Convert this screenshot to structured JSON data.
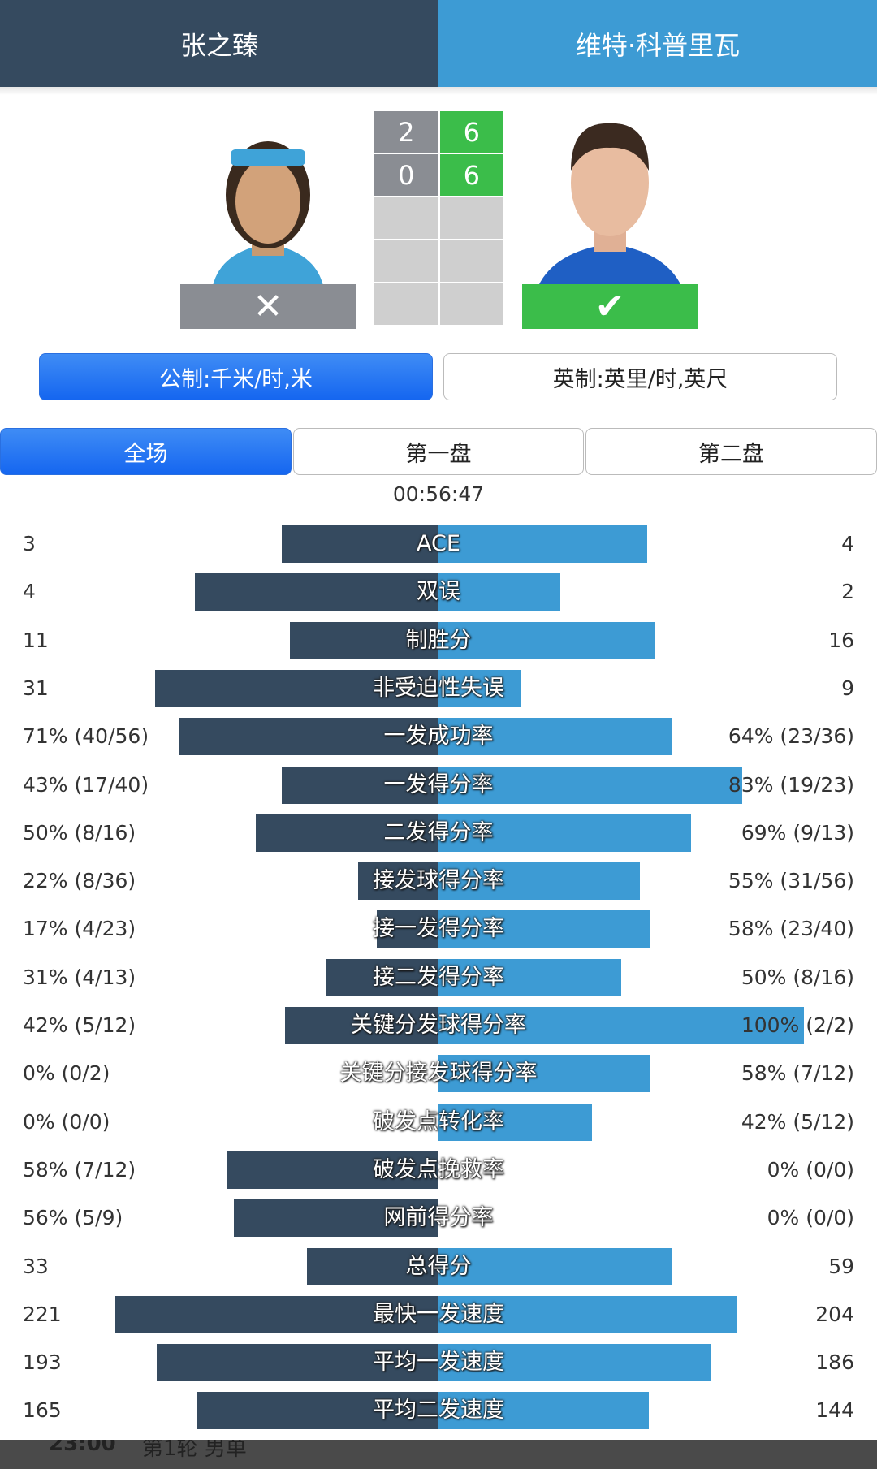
{
  "players": {
    "left": {
      "name": "张之臻",
      "result_icon": "x-icon"
    },
    "right": {
      "name": "维特·科普里瓦",
      "result_icon": "check-icon"
    }
  },
  "score": {
    "left": [
      "2",
      "0",
      "",
      "",
      ""
    ],
    "right": [
      "6",
      "6",
      "",
      "",
      ""
    ]
  },
  "units": {
    "metric": "公制:千米/时,米",
    "imperial": "英制:英里/时,英尺",
    "active": "metric"
  },
  "tabs": [
    {
      "label": "全场",
      "active": true
    },
    {
      "label": "第一盘",
      "active": false
    },
    {
      "label": "第二盘",
      "active": false
    }
  ],
  "duration": "00:56:47",
  "colors": {
    "left": "#354a5f",
    "right": "#3d9bd4",
    "win": "#3bbd4a",
    "lose": "#8a8d93"
  },
  "stats": [
    {
      "label": "ACE",
      "left": "3",
      "right": "4",
      "lf": 0.429,
      "rf": 0.571
    },
    {
      "label": "双误",
      "left": "4",
      "right": "2",
      "lf": 0.667,
      "rf": 0.333
    },
    {
      "label": "制胜分",
      "left": "11",
      "right": "16",
      "lf": 0.407,
      "rf": 0.593
    },
    {
      "label": "非受迫性失误",
      "left": "31",
      "right": "9",
      "lf": 0.775,
      "rf": 0.225
    },
    {
      "label": "一发成功率",
      "left": "71% (40/56)",
      "right": "64% (23/36)",
      "lf": 0.71,
      "rf": 0.64
    },
    {
      "label": "一发得分率",
      "left": "43% (17/40)",
      "right": "83% (19/23)",
      "lf": 0.43,
      "rf": 0.83
    },
    {
      "label": "二发得分率",
      "left": "50% (8/16)",
      "right": "69% (9/13)",
      "lf": 0.5,
      "rf": 0.69
    },
    {
      "label": "接发球得分率",
      "left": "22% (8/36)",
      "right": "55% (31/56)",
      "lf": 0.22,
      "rf": 0.55
    },
    {
      "label": "接一发得分率",
      "left": "17% (4/23)",
      "right": "58% (23/40)",
      "lf": 0.17,
      "rf": 0.58
    },
    {
      "label": "接二发得分率",
      "left": "31% (4/13)",
      "right": "50% (8/16)",
      "lf": 0.31,
      "rf": 0.5
    },
    {
      "label": "关键分发球得分率",
      "left": "42% (5/12)",
      "right": "100% (2/2)",
      "lf": 0.42,
      "rf": 1.0
    },
    {
      "label": "关键分接发球得分率",
      "left": "0% (0/2)",
      "right": "58% (7/12)",
      "lf": 0,
      "rf": 0.58
    },
    {
      "label": "破发点转化率",
      "left": "0% (0/0)",
      "right": "42% (5/12)",
      "lf": 0,
      "rf": 0.42
    },
    {
      "label": "破发点挽救率",
      "left": "58% (7/12)",
      "right": "0% (0/0)",
      "lf": 0.58,
      "rf": 0
    },
    {
      "label": "网前得分率",
      "left": "56% (5/9)",
      "right": "0% (0/0)",
      "lf": 0.56,
      "rf": 0
    },
    {
      "label": "总得分",
      "left": "33",
      "right": "59",
      "lf": 0.359,
      "rf": 0.641
    },
    {
      "label": "最快一发速度",
      "left": "221",
      "right": "204",
      "lf": 0.884,
      "rf": 0.816
    },
    {
      "label": "平均一发速度",
      "left": "193",
      "right": "186",
      "lf": 0.772,
      "rf": 0.744
    },
    {
      "label": "平均二发速度",
      "left": "165",
      "right": "144",
      "lf": 0.66,
      "rf": 0.576
    }
  ],
  "footer": {
    "time": "23:00",
    "round": "第1轮 男单"
  }
}
